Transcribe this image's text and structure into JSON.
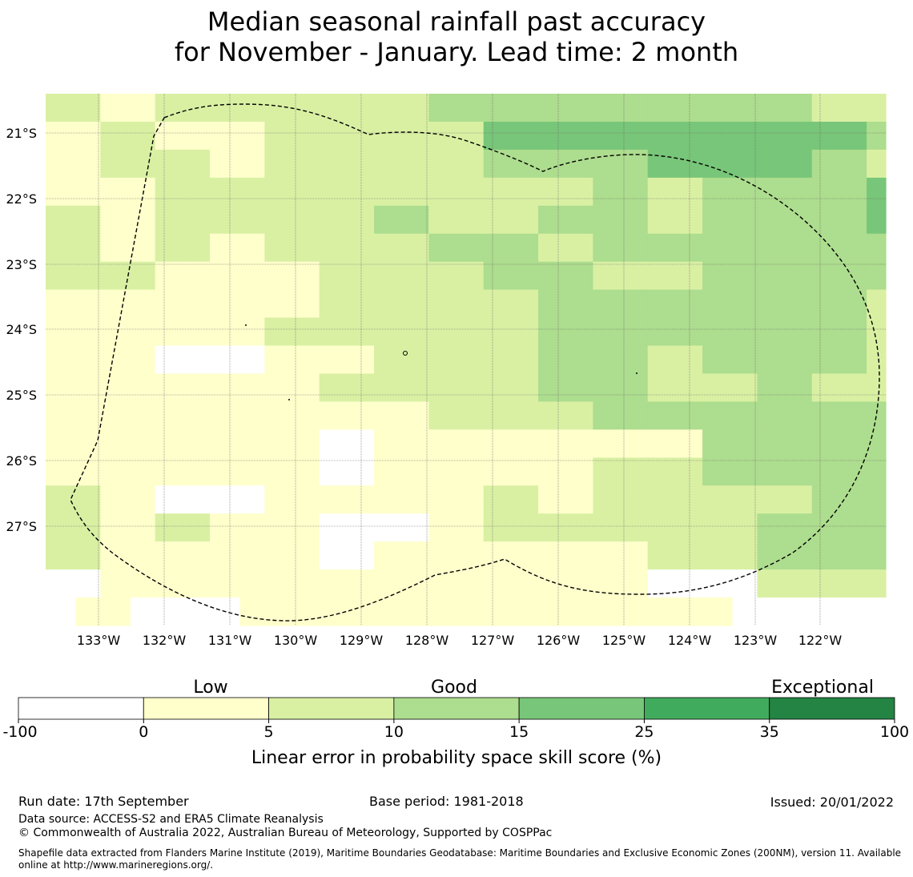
{
  "title": {
    "line1": "Median seasonal rainfall past accuracy",
    "line2": "for November - January. Lead time: 2 month"
  },
  "map": {
    "lon_labels": [
      "133°W",
      "132°W",
      "131°W",
      "130°W",
      "129°W",
      "128°W",
      "127°W",
      "126°W",
      "125°W",
      "124°W",
      "123°W",
      "122°W"
    ],
    "lat_labels": [
      "21°S",
      "22°S",
      "23°S",
      "24°S",
      "25°S",
      "26°S",
      "27°S"
    ],
    "grid_lines": true,
    "boundary": "dashed exclusive economic zone outline",
    "cell_classes": [
      "2122222333333322",
      "1211222244444443",
      "1221222233344432",
      "1122222222323334",
      "2122223223323334",
      "2121222332333333",
      "2211122233223333",
      "1111122223333332",
      "1111222223333332",
      "1100112223323332",
      "1111122223322322",
      "1111111222333333",
      "1111101111113333",
      "1111101111223333",
      "2100111121222233",
      "2121100122222333",
      "2111101111122333",
      "0111111111100222",
      "x1001111111110001"
    ],
    "cell_note": "class index: 0=-100..0, 1=0..5, 2=5..10, 3=10..15, 4=15..25"
  },
  "colorbar": {
    "categories": [
      "Low",
      "Good",
      "Exceptional"
    ],
    "tick_labels": [
      "-100",
      "0",
      "5",
      "10",
      "15",
      "25",
      "35",
      "100"
    ],
    "colors": [
      "#ffffff",
      "#ffffcc",
      "#d9f0a3",
      "#addd8e",
      "#78c679",
      "#41ab5d",
      "#238443"
    ],
    "title": "Linear error in probability space skill score (%)"
  },
  "footer": {
    "run_date": "Run date: 17th September",
    "base_period": "Base period: 1981-2018",
    "issued": "Issued: 20/01/2022",
    "data_source": "Data source: ACCESS-S2 and ERA5 Climate Reanalysis",
    "copyright": "© Commonwealth of Australia 2022, Australian Bureau of Meteorology, Supported by COSPPac",
    "shapefile_line1": "Shapefile data extracted from Flanders Marine Institute (2019), Maritime Boundaries Geodatabase: Maritime Boundaries and Exclusive Economic Zones (200NM), version 11. Available",
    "shapefile_line2": "online at http://www.marineregions.org/."
  }
}
